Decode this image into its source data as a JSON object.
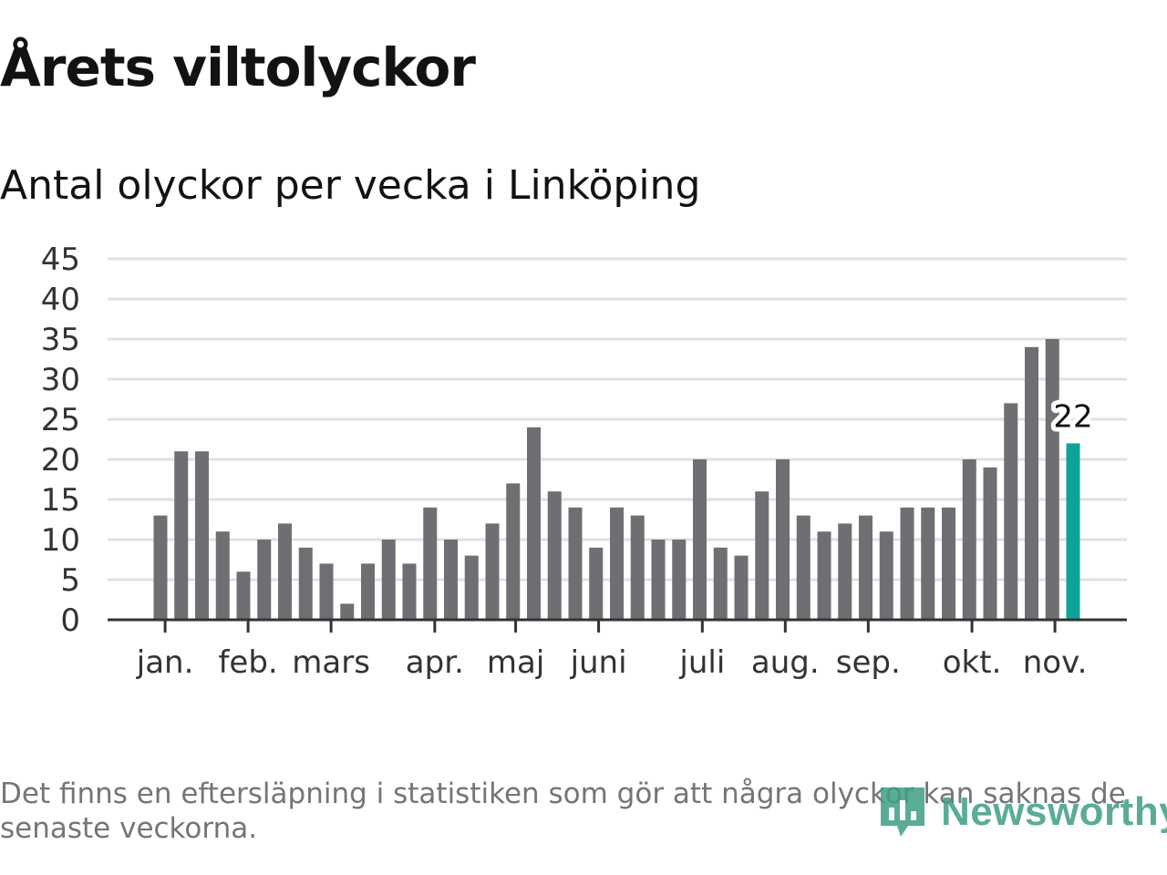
{
  "header": {
    "title": "Årets viltolyckor",
    "subtitle": "Antal olyckor per vecka i Linköping"
  },
  "chart_data": {
    "type": "bar",
    "title": "Årets viltolyckor",
    "subtitle": "Antal olyckor per vecka i Linköping",
    "xlabel": "",
    "ylabel": "",
    "ylim": [
      0,
      45
    ],
    "yticks": [
      0,
      5,
      10,
      15,
      20,
      25,
      30,
      35,
      40,
      45
    ],
    "grid": true,
    "values": [
      13,
      21,
      21,
      11,
      6,
      10,
      12,
      9,
      7,
      2,
      7,
      10,
      7,
      14,
      10,
      8,
      12,
      17,
      24,
      16,
      14,
      9,
      14,
      13,
      10,
      10,
      20,
      9,
      8,
      16,
      20,
      13,
      11,
      12,
      13,
      11,
      14,
      14,
      14,
      20,
      19,
      27,
      34,
      35,
      22
    ],
    "month_ticks": [
      {
        "label": "jan.",
        "index": 0.4
      },
      {
        "label": "feb.",
        "index": 4.4
      },
      {
        "label": "mars",
        "index": 8.4
      },
      {
        "label": "apr.",
        "index": 13.4
      },
      {
        "label": "maj",
        "index": 17.3
      },
      {
        "label": "juni",
        "index": 21.3
      },
      {
        "label": "juli",
        "index": 26.3
      },
      {
        "label": "aug.",
        "index": 30.3
      },
      {
        "label": "sep.",
        "index": 34.3
      },
      {
        "label": "okt.",
        "index": 39.3
      },
      {
        "label": "nov.",
        "index": 43.3
      }
    ],
    "highlight_index": 44,
    "highlight_label": "22",
    "colors": {
      "bar": "#6f6e73",
      "highlight": "#0fa398",
      "grid": "#e0e0e0",
      "axis": "#333333"
    }
  },
  "footer": {
    "note": "Det finns en eftersläpning i statistiken som gör att några olyckor kan saknas de senaste veckorna.",
    "brand": "Newsworthy"
  }
}
